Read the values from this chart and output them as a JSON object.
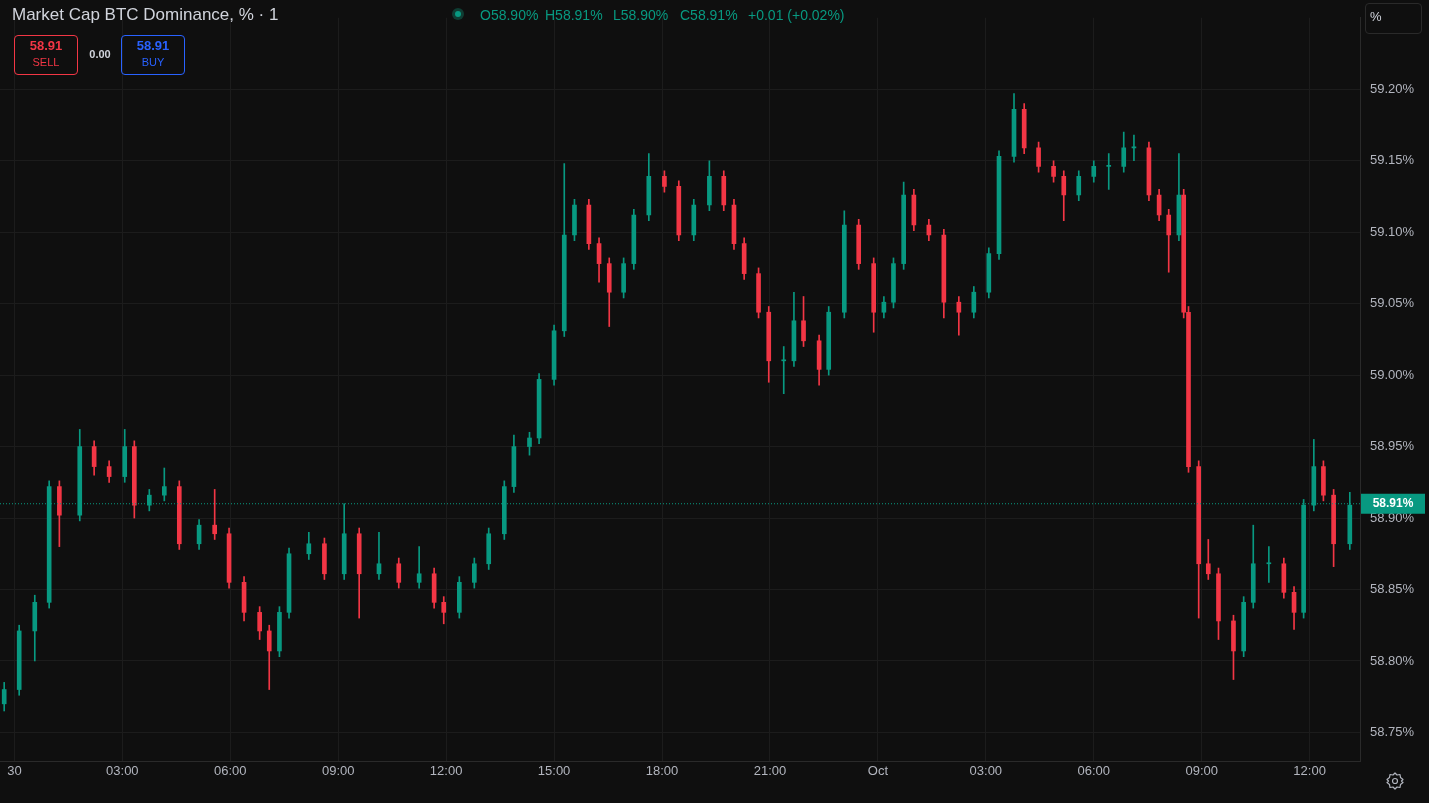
{
  "chart_data": {
    "type": "candlestick",
    "title": "Market Cap BTC Dominance, % · 1",
    "annotations": [
      "O58.90%",
      "H58.91%",
      "L58.90%",
      "C58.91%",
      "+0.01 (+0.02%)",
      "58.91",
      "SELL",
      "0.00",
      "58.91",
      "BUY",
      "%"
    ],
    "x": [
      "--09-29T23:43",
      "--09-30T00:08",
      "--09-30T00:34",
      "--09-30T00:58",
      "--09-30T01:15",
      "--09-30T01:49",
      "--09-30T02:13",
      "--09-30T02:38",
      "--09-30T03:04",
      "--09-30T03:20",
      "--09-30T03:45",
      "--09-30T04:10",
      "--09-30T04:35",
      "--09-30T05:08",
      "--09-30T05:34",
      "--09-30T05:58",
      "--09-30T06:23",
      "--09-30T06:49",
      "--09-30T07:05",
      "--09-30T07:22",
      "--09-30T07:38",
      "--09-30T08:11",
      "--09-30T08:37",
      "--09-30T09:10",
      "--09-30T09:35",
      "--09-30T10:08",
      "--09-30T10:41",
      "--09-30T11:15",
      "--09-30T11:40",
      "--09-30T11:56",
      "--09-30T12:22",
      "--09-30T12:47",
      "--09-30T13:11",
      "--09-30T13:37",
      "--09-30T13:53",
      "--09-30T14:19",
      "--09-30T14:35",
      "--09-30T15:00",
      "--09-30T15:17",
      "--09-30T15:34",
      "--09-30T15:58",
      "--09-30T16:15",
      "--09-30T16:32",
      "--09-30T16:56",
      "--09-30T17:13",
      "--09-30T17:38",
      "--09-30T18:04",
      "--09-30T18:28",
      "--09-30T18:53",
      "--09-30T19:19",
      "--09-30T19:43",
      "--09-30T20:00",
      "--09-30T20:17",
      "--09-30T20:41",
      "--09-30T20:58",
      "--09-30T21:23",
      "--09-30T21:40",
      "--09-30T21:56",
      "--09-30T22:22",
      "--09-30T22:38",
      "--09-30T23:04",
      "--09-30T23:28",
      "--09-30T23:53",
      "--10-01T00:10",
      "--10-01T00:26",
      "--10-01T00:43",
      "--10-01T01:00",
      "--10-01T01:25",
      "--10-01T01:50",
      "--10-01T02:15",
      "--10-01T02:40",
      "--10-01T03:05",
      "--10-01T03:22",
      "--10-01T03:47",
      "--10-01T04:04",
      "--10-01T04:28",
      "--10-01T04:53",
      "--10-01T05:10",
      "--10-01T05:35",
      "--10-01T06:00",
      "--10-01T06:25",
      "--10-01T06:50",
      "--10-01T07:07",
      "--10-01T07:32",
      "--10-01T07:49",
      "--10-01T08:05",
      "--10-01T08:22",
      "--10-01T08:30",
      "--10-01T08:38",
      "--10-01T08:55",
      "--10-01T09:11",
      "--10-01T09:28",
      "--10-01T09:53",
      "--10-01T10:10",
      "--10-01T10:26",
      "--10-01T10:52",
      "--10-01T11:17",
      "--10-01T11:34",
      "--10-01T11:50",
      "--10-01T12:07",
      "--10-01T12:23",
      "--10-01T12:40",
      "--10-01T13:07"
    ],
    "ohlc": [
      [
        58.77,
        58.785,
        58.765,
        58.78
      ],
      [
        58.78,
        58.825,
        58.776,
        58.821
      ],
      [
        58.821,
        58.846,
        58.8,
        58.841
      ],
      [
        58.841,
        58.926,
        58.837,
        58.922
      ],
      [
        58.922,
        58.926,
        58.88,
        58.902
      ],
      [
        58.902,
        58.962,
        58.898,
        58.95
      ],
      [
        58.95,
        58.954,
        58.93,
        58.936
      ],
      [
        58.936,
        58.94,
        58.925,
        58.929
      ],
      [
        58.929,
        58.962,
        58.925,
        58.95
      ],
      [
        58.95,
        58.954,
        58.9,
        58.909
      ],
      [
        58.909,
        58.92,
        58.905,
        58.916
      ],
      [
        58.916,
        58.935,
        58.912,
        58.922
      ],
      [
        58.922,
        58.926,
        58.878,
        58.882
      ],
      [
        58.882,
        58.899,
        58.878,
        58.895
      ],
      [
        58.895,
        58.92,
        58.885,
        58.889
      ],
      [
        58.889,
        58.893,
        58.851,
        58.855
      ],
      [
        58.855,
        58.859,
        58.828,
        58.834
      ],
      [
        58.834,
        58.838,
        58.815,
        58.821
      ],
      [
        58.821,
        58.825,
        58.78,
        58.807
      ],
      [
        58.807,
        58.838,
        58.803,
        58.834
      ],
      [
        58.834,
        58.879,
        58.83,
        58.875
      ],
      [
        58.875,
        58.89,
        58.871,
        58.882
      ],
      [
        58.882,
        58.886,
        58.857,
        58.861
      ],
      [
        58.861,
        58.91,
        58.857,
        58.889
      ],
      [
        58.889,
        58.893,
        58.83,
        58.861
      ],
      [
        58.861,
        58.89,
        58.857,
        58.868
      ],
      [
        58.868,
        58.872,
        58.851,
        58.855
      ],
      [
        58.855,
        58.88,
        58.851,
        58.861
      ],
      [
        58.861,
        58.865,
        58.837,
        58.841
      ],
      [
        58.841,
        58.845,
        58.826,
        58.834
      ],
      [
        58.834,
        58.859,
        58.83,
        58.855
      ],
      [
        58.855,
        58.872,
        58.851,
        58.868
      ],
      [
        58.868,
        58.893,
        58.864,
        58.889
      ],
      [
        58.889,
        58.926,
        58.885,
        58.922
      ],
      [
        58.922,
        58.958,
        58.918,
        58.95
      ],
      [
        58.95,
        58.96,
        58.944,
        58.956
      ],
      [
        58.956,
        59.001,
        58.952,
        58.997
      ],
      [
        58.997,
        59.035,
        58.993,
        59.031
      ],
      [
        59.031,
        59.148,
        59.027,
        59.098
      ],
      [
        59.098,
        59.123,
        59.094,
        59.119
      ],
      [
        59.119,
        59.123,
        59.088,
        59.092
      ],
      [
        59.092,
        59.096,
        59.065,
        59.078
      ],
      [
        59.078,
        59.082,
        59.034,
        59.058
      ],
      [
        59.058,
        59.082,
        59.054,
        59.078
      ],
      [
        59.078,
        59.116,
        59.074,
        59.112
      ],
      [
        59.112,
        59.155,
        59.108,
        59.139
      ],
      [
        59.139,
        59.143,
        59.128,
        59.132
      ],
      [
        59.132,
        59.136,
        59.094,
        59.098
      ],
      [
        59.098,
        59.123,
        59.094,
        59.119
      ],
      [
        59.119,
        59.15,
        59.115,
        59.139
      ],
      [
        59.139,
        59.143,
        59.115,
        59.119
      ],
      [
        59.119,
        59.123,
        59.088,
        59.092
      ],
      [
        59.092,
        59.096,
        59.067,
        59.071
      ],
      [
        59.071,
        59.075,
        59.04,
        59.044
      ],
      [
        59.044,
        59.048,
        58.995,
        59.01
      ],
      [
        59.01,
        59.02,
        58.987,
        59.01
      ],
      [
        59.01,
        59.058,
        59.006,
        59.038
      ],
      [
        59.038,
        59.055,
        59.02,
        59.024
      ],
      [
        59.024,
        59.028,
        58.993,
        59.004
      ],
      [
        59.004,
        59.048,
        59.0,
        59.044
      ],
      [
        59.044,
        59.115,
        59.04,
        59.105
      ],
      [
        59.105,
        59.109,
        59.074,
        59.078
      ],
      [
        59.078,
        59.082,
        59.03,
        59.044
      ],
      [
        59.044,
        59.055,
        59.04,
        59.051
      ],
      [
        59.051,
        59.082,
        59.047,
        59.078
      ],
      [
        59.078,
        59.135,
        59.074,
        59.126
      ],
      [
        59.126,
        59.13,
        59.101,
        59.105
      ],
      [
        59.105,
        59.109,
        59.094,
        59.098
      ],
      [
        59.098,
        59.102,
        59.04,
        59.051
      ],
      [
        59.051,
        59.055,
        59.028,
        59.044
      ],
      [
        59.044,
        59.062,
        59.04,
        59.058
      ],
      [
        59.058,
        59.089,
        59.054,
        59.085
      ],
      [
        59.085,
        59.157,
        59.081,
        59.153
      ],
      [
        59.153,
        59.197,
        59.149,
        59.186
      ],
      [
        59.186,
        59.19,
        59.155,
        59.159
      ],
      [
        59.159,
        59.163,
        59.142,
        59.146
      ],
      [
        59.146,
        59.15,
        59.135,
        59.139
      ],
      [
        59.139,
        59.143,
        59.108,
        59.126
      ],
      [
        59.126,
        59.143,
        59.122,
        59.139
      ],
      [
        59.139,
        59.15,
        59.135,
        59.146
      ],
      [
        59.146,
        59.155,
        59.13,
        59.146
      ],
      [
        59.146,
        59.17,
        59.142,
        59.159
      ],
      [
        59.159,
        59.168,
        59.15,
        59.159
      ],
      [
        59.159,
        59.163,
        59.122,
        59.126
      ],
      [
        59.126,
        59.13,
        59.108,
        59.112
      ],
      [
        59.112,
        59.116,
        59.072,
        59.098
      ],
      [
        59.098,
        59.155,
        59.094,
        59.126
      ],
      [
        59.126,
        59.13,
        59.04,
        59.044
      ],
      [
        59.044,
        59.048,
        58.932,
        58.936
      ],
      [
        58.936,
        58.94,
        58.83,
        58.868
      ],
      [
        58.868,
        58.885,
        58.857,
        58.861
      ],
      [
        58.861,
        58.865,
        58.815,
        58.828
      ],
      [
        58.828,
        58.832,
        58.787,
        58.807
      ],
      [
        58.807,
        58.845,
        58.803,
        58.841
      ],
      [
        58.841,
        58.895,
        58.837,
        58.868
      ],
      [
        58.868,
        58.88,
        58.855,
        58.868
      ],
      [
        58.868,
        58.872,
        58.844,
        58.848
      ],
      [
        58.848,
        58.852,
        58.822,
        58.834
      ],
      [
        58.834,
        58.913,
        58.83,
        58.909
      ],
      [
        58.909,
        58.955,
        58.905,
        58.936
      ],
      [
        58.936,
        58.94,
        58.912,
        58.916
      ],
      [
        58.916,
        58.92,
        58.866,
        58.882
      ],
      [
        58.882,
        58.918,
        58.878,
        58.909
      ]
    ],
    "colors": [
      "#089981",
      "#089981",
      "#089981",
      "#089981",
      "#f23645",
      "#089981",
      "#f23645",
      "#f23645",
      "#089981",
      "#f23645",
      "#089981",
      "#089981",
      "#f23645",
      "#089981",
      "#f23645",
      "#f23645",
      "#f23645",
      "#f23645",
      "#f23645",
      "#089981",
      "#089981",
      "#089981",
      "#f23645",
      "#089981",
      "#f23645",
      "#089981",
      "#f23645",
      "#089981",
      "#f23645",
      "#f23645",
      "#089981",
      "#089981",
      "#089981",
      "#089981",
      "#089981",
      "#089981",
      "#089981",
      "#089981",
      "#089981",
      "#089981",
      "#f23645",
      "#f23645",
      "#f23645",
      "#089981",
      "#089981",
      "#089981",
      "#f23645",
      "#f23645",
      "#089981",
      "#089981",
      "#f23645",
      "#f23645",
      "#f23645",
      "#f23645",
      "#f23645",
      "#089981",
      "#089981",
      "#f23645",
      "#f23645",
      "#089981",
      "#089981",
      "#f23645",
      "#f23645",
      "#089981",
      "#089981",
      "#089981",
      "#f23645",
      "#f23645",
      "#f23645",
      "#f23645",
      "#089981",
      "#089981",
      "#089981",
      "#089981",
      "#f23645",
      "#f23645",
      "#f23645",
      "#f23645",
      "#089981",
      "#089981",
      "#089981",
      "#089981",
      "#089981",
      "#f23645",
      "#f23645",
      "#f23645",
      "#089981",
      "#f23645",
      "#f23645",
      "#f23645",
      "#f23645",
      "#f23645",
      "#f23645",
      "#089981",
      "#089981",
      "#089981",
      "#f23645",
      "#f23645",
      "#089981",
      "#089981",
      "#f23645",
      "#f23645",
      "#089981"
    ],
    "xlim": [
      "--09-29T23:36",
      "--10-01T13:24"
    ],
    "xticks": [
      {
        "value": "--09-30T00:00",
        "label": "30"
      },
      {
        "value": "--09-30T03:00",
        "label": "03:00"
      },
      {
        "value": "--09-30T06:00",
        "label": "06:00"
      },
      {
        "value": "--09-30T09:00",
        "label": "09:00"
      },
      {
        "value": "--09-30T12:00",
        "label": "12:00"
      },
      {
        "value": "--09-30T15:00",
        "label": "15:00"
      },
      {
        "value": "--09-30T18:00",
        "label": "18:00"
      },
      {
        "value": "--09-30T21:00",
        "label": "21:00"
      },
      {
        "value": "--10-01T00:00",
        "label": "Oct"
      },
      {
        "value": "--10-01T03:00",
        "label": "03:00"
      },
      {
        "value": "--10-01T06:00",
        "label": "06:00"
      },
      {
        "value": "--10-01T09:00",
        "label": "09:00"
      },
      {
        "value": "--10-01T12:00",
        "label": "12:00"
      }
    ],
    "ylim": [
      58.73,
      59.25
    ],
    "yticks": [
      {
        "value": 58.75,
        "label": "58.75%"
      },
      {
        "value": 58.8,
        "label": "58.80%"
      },
      {
        "value": 58.85,
        "label": "58.85%"
      },
      {
        "value": 58.9,
        "label": "58.90%"
      },
      {
        "value": 58.95,
        "label": "58.95%"
      },
      {
        "value": 59.0,
        "label": "59.00%"
      },
      {
        "value": 59.05,
        "label": "59.05%"
      },
      {
        "value": 59.1,
        "label": "59.10%"
      },
      {
        "value": 59.15,
        "label": "59.15%"
      },
      {
        "value": 59.2,
        "label": "59.20%"
      }
    ],
    "ref_lines": [
      {
        "axis": "y",
        "value": 58.91,
        "label": "58.91%",
        "color": "#089981",
        "line_style": "dotted"
      }
    ],
    "grid": true,
    "legend": false
  }
}
